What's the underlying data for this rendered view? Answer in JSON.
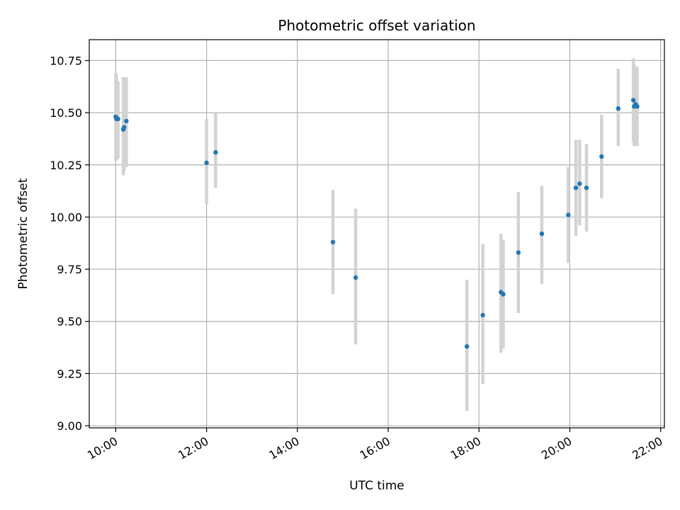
{
  "chart_data": {
    "type": "scatter",
    "title": "Photometric offset variation",
    "xlabel": "UTC time",
    "ylabel": "Photometric offset",
    "x_ticks": [
      "10:00",
      "12:00",
      "14:00",
      "16:00",
      "18:00",
      "20:00",
      "22:00"
    ],
    "y_ticks": [
      "9.00",
      "9.25",
      "9.50",
      "9.75",
      "10.00",
      "10.25",
      "10.50",
      "10.75"
    ],
    "xlim": [
      "09:25",
      "22:05"
    ],
    "ylim": [
      8.99,
      10.85
    ],
    "grid": true,
    "point_color": "#1f77b4",
    "errorbar_color": "#d3d3d3",
    "grid_color": "#b0b0b0",
    "series": [
      {
        "points": [
          {
            "x": "10:00",
            "y": 10.48,
            "yerr_low": 10.27,
            "yerr_high": 10.69
          },
          {
            "x": "10:01",
            "y": 10.47,
            "yerr_low": 10.27,
            "yerr_high": 10.68
          },
          {
            "x": "10:03",
            "y": 10.47,
            "yerr_low": 10.28,
            "yerr_high": 10.65
          },
          {
            "x": "10:10",
            "y": 10.42,
            "yerr_low": 10.2,
            "yerr_high": 10.67
          },
          {
            "x": "10:11",
            "y": 10.43,
            "yerr_low": 10.22,
            "yerr_high": 10.66
          },
          {
            "x": "10:14",
            "y": 10.46,
            "yerr_low": 10.24,
            "yerr_high": 10.67
          },
          {
            "x": "12:00",
            "y": 10.26,
            "yerr_low": 10.06,
            "yerr_high": 10.47
          },
          {
            "x": "12:12",
            "y": 10.31,
            "yerr_low": 10.14,
            "yerr_high": 10.5
          },
          {
            "x": "14:47",
            "y": 9.88,
            "yerr_low": 9.63,
            "yerr_high": 10.13
          },
          {
            "x": "15:17",
            "y": 9.71,
            "yerr_low": 9.39,
            "yerr_high": 10.04
          },
          {
            "x": "17:44",
            "y": 9.38,
            "yerr_low": 9.07,
            "yerr_high": 9.7
          },
          {
            "x": "18:05",
            "y": 9.53,
            "yerr_low": 9.2,
            "yerr_high": 9.87
          },
          {
            "x": "18:29",
            "y": 9.64,
            "yerr_low": 9.35,
            "yerr_high": 9.92
          },
          {
            "x": "18:32",
            "y": 9.63,
            "yerr_low": 9.37,
            "yerr_high": 9.89
          },
          {
            "x": "18:52",
            "y": 9.83,
            "yerr_low": 9.54,
            "yerr_high": 10.12
          },
          {
            "x": "19:23",
            "y": 9.92,
            "yerr_low": 9.68,
            "yerr_high": 10.15
          },
          {
            "x": "19:58",
            "y": 10.01,
            "yerr_low": 9.78,
            "yerr_high": 10.24
          },
          {
            "x": "20:08",
            "y": 10.14,
            "yerr_low": 9.91,
            "yerr_high": 10.37
          },
          {
            "x": "20:13",
            "y": 10.16,
            "yerr_low": 9.96,
            "yerr_high": 10.37
          },
          {
            "x": "20:22",
            "y": 10.14,
            "yerr_low": 9.93,
            "yerr_high": 10.35
          },
          {
            "x": "20:42",
            "y": 10.29,
            "yerr_low": 10.09,
            "yerr_high": 10.49
          },
          {
            "x": "21:04",
            "y": 10.52,
            "yerr_low": 10.34,
            "yerr_high": 10.71
          },
          {
            "x": "21:24",
            "y": 10.56,
            "yerr_low": 10.36,
            "yerr_high": 10.76
          },
          {
            "x": "21:25",
            "y": 10.53,
            "yerr_low": 10.34,
            "yerr_high": 10.73
          },
          {
            "x": "21:27",
            "y": 10.54,
            "yerr_low": 10.35,
            "yerr_high": 10.72
          },
          {
            "x": "21:29",
            "y": 10.53,
            "yerr_low": 10.34,
            "yerr_high": 10.72
          }
        ]
      }
    ]
  }
}
